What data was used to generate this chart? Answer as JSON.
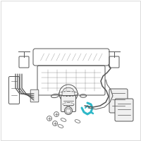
{
  "background_color": "#ffffff",
  "border_color": "#cccccc",
  "line_color": "#555555",
  "highlight_color": "#2eb8c8",
  "fig_size": [
    2.0,
    2.0
  ],
  "dpi": 100
}
